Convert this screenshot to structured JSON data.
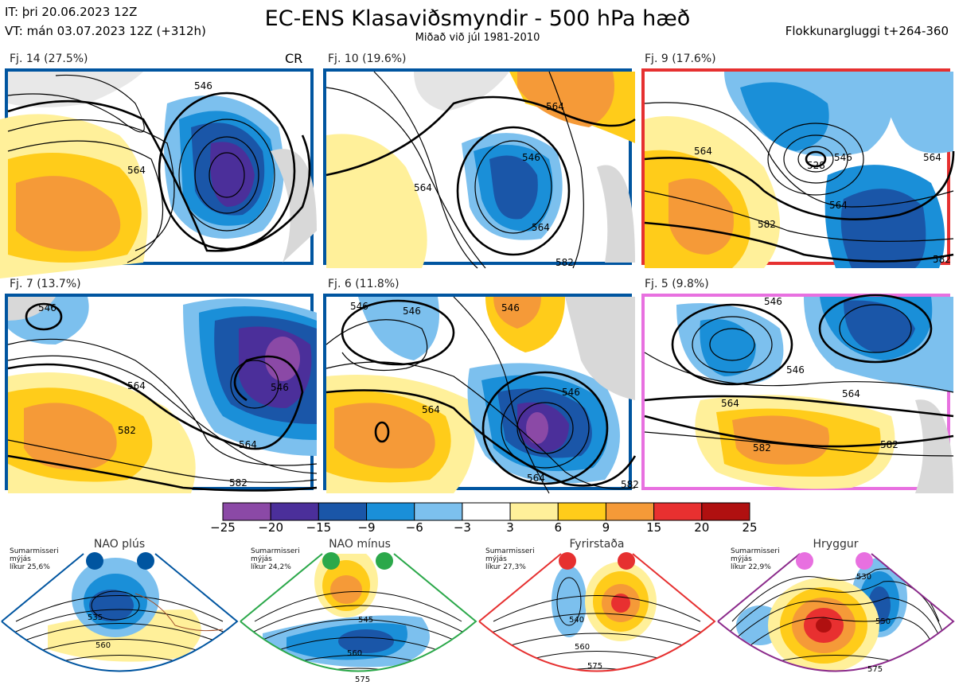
{
  "header": {
    "it": "IT: þri 20.06.2023 12Z",
    "vt": "VT: mán 03.07.2023 12Z  (+312h)",
    "title": "EC-ENS Klasaviðsmyndir - 500 hPa hæð",
    "subtitle": "Miðað við júl 1981-2010",
    "window": "Flokkunargluggi t+264-360"
  },
  "panels": [
    {
      "label": "Fj. 14 (27.5%)",
      "border": "#0055a0",
      "marker": "CR",
      "contours": [
        "546",
        "564"
      ]
    },
    {
      "label": "Fj. 10 (19.6%)",
      "border": "#0055a0",
      "contours": [
        "564",
        "546",
        "564",
        "582",
        "564"
      ]
    },
    {
      "label": "Fj. 9 (17.6%)",
      "border": "#e63030",
      "contours": [
        "564",
        "528",
        "546",
        "564",
        "582",
        "564",
        "582"
      ]
    },
    {
      "label": "Fj. 7 (13.7%)",
      "border": "#0055a0",
      "contours": [
        "546",
        "564",
        "546",
        "582",
        "564",
        "582"
      ]
    },
    {
      "label": "Fj. 6 (11.8%)",
      "border": "#0055a0",
      "contours": [
        "546",
        "546",
        "546",
        "564",
        "546",
        "564",
        "582"
      ]
    },
    {
      "label": "Fj. 5 (9.8%)",
      "border": "#e870e0",
      "contours": [
        "546",
        "546",
        "564",
        "564",
        "582",
        "582"
      ]
    }
  ],
  "colorbar": {
    "colors": [
      "#8b49a6",
      "#4b2f9a",
      "#1a56a8",
      "#1a8fd8",
      "#7cc0ee",
      "#ffffff",
      "#fff09a",
      "#ffcc1a",
      "#f59a38",
      "#e83030",
      "#b01010"
    ],
    "ticks": [
      "−25",
      "−20",
      "−15",
      "−9",
      "−6",
      "−3",
      "3",
      "6",
      "9",
      "15",
      "20",
      "25"
    ]
  },
  "regimes": [
    {
      "name": "NAO plús",
      "info": [
        "Sumarmisseri",
        "mýjás",
        "líkur 25,6%"
      ],
      "color": "#0055a0",
      "dot": "#0055a0",
      "labels": [
        "535",
        "560"
      ]
    },
    {
      "name": "NAO mínus",
      "info": [
        "Sumarmisseri",
        "mýjás",
        "líkur 24,2%"
      ],
      "color": "#2ba84a",
      "dot": "#2ba84a",
      "labels": [
        "545",
        "560",
        "575"
      ]
    },
    {
      "name": "Fyrirstaða",
      "info": [
        "Sumarmisseri",
        "mýjás",
        "líkur 27,3%"
      ],
      "color": "#e63030",
      "dot": "#e63030",
      "labels": [
        "540",
        "560",
        "575"
      ]
    },
    {
      "name": "Hryggur",
      "info": [
        "Sumarmisseri",
        "mýjás",
        "líkur 22,9%"
      ],
      "color": "#8b2a8b",
      "dot": "#e870e0",
      "labels": [
        "530",
        "550",
        "575"
      ]
    }
  ]
}
